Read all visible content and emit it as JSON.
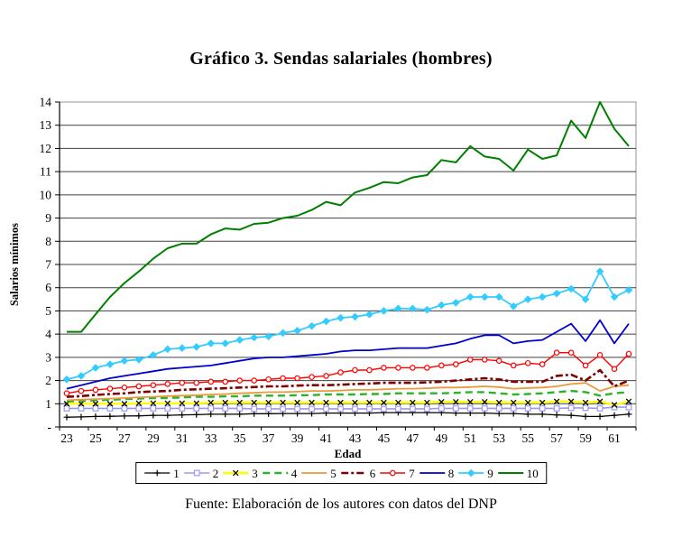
{
  "title": "Gráfico 3. Sendas salariales (hombres)",
  "source_note": "Fuente: Elaboración de los autores con datos del DNP",
  "chart_data": {
    "type": "line",
    "title": "Gráfico 3. Sendas salariales (hombres)",
    "xlabel": "Edad",
    "ylabel": "Salarios mínimos",
    "xlim": [
      23,
      62
    ],
    "ylim": [
      0,
      14
    ],
    "grid": true,
    "legend_position": "bottom",
    "x": [
      23,
      24,
      25,
      26,
      27,
      28,
      29,
      30,
      31,
      32,
      33,
      34,
      35,
      36,
      37,
      38,
      39,
      40,
      41,
      42,
      43,
      44,
      45,
      46,
      47,
      48,
      49,
      50,
      51,
      52,
      53,
      54,
      55,
      56,
      57,
      58,
      59,
      60,
      61,
      62
    ],
    "x_ticks": [
      23,
      25,
      27,
      29,
      31,
      33,
      35,
      37,
      39,
      41,
      43,
      45,
      47,
      49,
      51,
      53,
      55,
      57,
      59,
      61
    ],
    "y_ticks": [
      "-",
      "1",
      "2",
      "3",
      "4",
      "5",
      "6",
      "7",
      "8",
      "9",
      "10",
      "11",
      "12",
      "13",
      "14"
    ],
    "series": [
      {
        "name": "1",
        "color": "#000000",
        "marker": "plus",
        "marker_color": "#000000",
        "dash": "solid",
        "width": 1.3,
        "values": [
          0.42,
          0.43,
          0.45,
          0.46,
          0.47,
          0.48,
          0.5,
          0.5,
          0.52,
          0.53,
          0.55,
          0.55,
          0.55,
          0.57,
          0.57,
          0.58,
          0.58,
          0.58,
          0.6,
          0.6,
          0.6,
          0.6,
          0.62,
          0.62,
          0.62,
          0.62,
          0.62,
          0.6,
          0.6,
          0.6,
          0.58,
          0.58,
          0.55,
          0.55,
          0.52,
          0.5,
          0.45,
          0.45,
          0.5,
          0.55
        ]
      },
      {
        "name": "2",
        "color": "#9999ff",
        "marker": "square",
        "marker_color": "#9999ff",
        "dash": "solid",
        "width": 1.6,
        "values": [
          0.8,
          0.8,
          0.8,
          0.8,
          0.8,
          0.8,
          0.8,
          0.8,
          0.8,
          0.8,
          0.8,
          0.8,
          0.8,
          0.78,
          0.78,
          0.78,
          0.78,
          0.78,
          0.78,
          0.78,
          0.78,
          0.78,
          0.78,
          0.78,
          0.78,
          0.78,
          0.8,
          0.8,
          0.8,
          0.8,
          0.8,
          0.8,
          0.8,
          0.8,
          0.8,
          0.82,
          0.82,
          0.8,
          0.85,
          0.85
        ]
      },
      {
        "name": "3",
        "color": "#ffff00",
        "marker": "x",
        "marker_color": "#000000",
        "dash": "solid",
        "width": 2.4,
        "values": [
          1.0,
          1.0,
          1.0,
          1.0,
          1.0,
          1.02,
          1.02,
          1.02,
          1.02,
          1.02,
          1.05,
          1.05,
          1.05,
          1.05,
          1.05,
          1.05,
          1.05,
          1.05,
          1.05,
          1.05,
          1.05,
          1.05,
          1.05,
          1.05,
          1.05,
          1.05,
          1.08,
          1.08,
          1.08,
          1.08,
          1.05,
          1.05,
          1.05,
          1.05,
          1.1,
          1.1,
          1.05,
          1.1,
          0.95,
          1.1
        ]
      },
      {
        "name": "4",
        "color": "#2db22d",
        "marker": "none",
        "dash": "dashed",
        "width": 2.4,
        "values": [
          1.1,
          1.12,
          1.15,
          1.17,
          1.2,
          1.22,
          1.25,
          1.25,
          1.27,
          1.3,
          1.3,
          1.32,
          1.32,
          1.35,
          1.35,
          1.35,
          1.37,
          1.37,
          1.4,
          1.4,
          1.4,
          1.42,
          1.42,
          1.45,
          1.45,
          1.45,
          1.45,
          1.47,
          1.5,
          1.5,
          1.45,
          1.4,
          1.42,
          1.45,
          1.5,
          1.55,
          1.5,
          1.35,
          1.45,
          1.5
        ]
      },
      {
        "name": "5",
        "color": "#e89a3c",
        "marker": "none",
        "dash": "solid",
        "width": 1.8,
        "values": [
          1.15,
          1.18,
          1.2,
          1.22,
          1.25,
          1.28,
          1.3,
          1.33,
          1.35,
          1.37,
          1.4,
          1.42,
          1.45,
          1.47,
          1.5,
          1.5,
          1.52,
          1.55,
          1.55,
          1.57,
          1.6,
          1.6,
          1.62,
          1.65,
          1.65,
          1.67,
          1.7,
          1.7,
          1.72,
          1.75,
          1.72,
          1.65,
          1.68,
          1.7,
          1.75,
          1.85,
          1.9,
          1.55,
          1.75,
          1.8
        ]
      },
      {
        "name": "6",
        "color": "#800000",
        "marker": "none",
        "dash": "dashdot",
        "width": 2.6,
        "values": [
          1.3,
          1.33,
          1.38,
          1.42,
          1.45,
          1.5,
          1.53,
          1.55,
          1.6,
          1.62,
          1.65,
          1.67,
          1.7,
          1.72,
          1.75,
          1.75,
          1.78,
          1.8,
          1.8,
          1.82,
          1.85,
          1.87,
          1.9,
          1.9,
          1.9,
          1.92,
          1.95,
          2.0,
          2.05,
          2.1,
          2.05,
          1.95,
          1.95,
          1.95,
          2.2,
          2.25,
          2.0,
          2.45,
          1.75,
          2.0
        ]
      },
      {
        "name": "7",
        "color": "#ff0000",
        "marker": "circle",
        "marker_color": "#ff0000",
        "dash": "solid",
        "width": 1.4,
        "values": [
          1.45,
          1.55,
          1.6,
          1.65,
          1.7,
          1.75,
          1.8,
          1.85,
          1.9,
          1.9,
          1.95,
          1.95,
          2.0,
          2.0,
          2.05,
          2.1,
          2.1,
          2.15,
          2.2,
          2.35,
          2.45,
          2.45,
          2.55,
          2.55,
          2.55,
          2.55,
          2.65,
          2.7,
          2.9,
          2.9,
          2.85,
          2.65,
          2.75,
          2.7,
          3.2,
          3.2,
          2.65,
          3.1,
          2.5,
          3.15
        ]
      },
      {
        "name": "8",
        "color": "#0000cc",
        "marker": "none",
        "dash": "solid",
        "width": 1.8,
        "values": [
          1.65,
          1.8,
          1.95,
          2.1,
          2.2,
          2.3,
          2.4,
          2.5,
          2.55,
          2.6,
          2.65,
          2.75,
          2.85,
          2.95,
          3.0,
          3.0,
          3.05,
          3.1,
          3.15,
          3.25,
          3.3,
          3.3,
          3.35,
          3.4,
          3.4,
          3.4,
          3.5,
          3.6,
          3.8,
          3.95,
          3.95,
          3.6,
          3.7,
          3.75,
          4.1,
          4.45,
          3.7,
          4.6,
          3.6,
          4.45
        ]
      },
      {
        "name": "9",
        "color": "#33ccff",
        "marker": "diamond",
        "marker_color": "#33ccff",
        "dash": "solid",
        "width": 1.8,
        "values": [
          2.05,
          2.2,
          2.55,
          2.7,
          2.85,
          2.9,
          3.1,
          3.35,
          3.4,
          3.45,
          3.6,
          3.6,
          3.75,
          3.85,
          3.9,
          4.05,
          4.15,
          4.35,
          4.55,
          4.7,
          4.75,
          4.85,
          5.0,
          5.1,
          5.1,
          5.05,
          5.25,
          5.35,
          5.6,
          5.6,
          5.6,
          5.2,
          5.5,
          5.6,
          5.75,
          5.95,
          5.5,
          6.7,
          5.6,
          5.9
        ]
      },
      {
        "name": "10",
        "color": "#008000",
        "marker": "none",
        "dash": "solid",
        "width": 2.0,
        "values": [
          4.1,
          4.1,
          4.85,
          5.6,
          6.2,
          6.7,
          7.25,
          7.7,
          7.9,
          7.9,
          8.3,
          8.55,
          8.5,
          8.75,
          8.8,
          9.0,
          9.1,
          9.35,
          9.7,
          9.55,
          10.1,
          10.3,
          10.55,
          10.5,
          10.75,
          10.85,
          11.5,
          11.4,
          12.1,
          11.65,
          11.55,
          11.05,
          11.95,
          11.55,
          11.7,
          13.2,
          12.45,
          14.0,
          12.85,
          12.1
        ]
      }
    ],
    "colors": {
      "gridline": "#404040",
      "plot_border": "#969696",
      "axis": "#000000",
      "text": "#000000"
    }
  }
}
